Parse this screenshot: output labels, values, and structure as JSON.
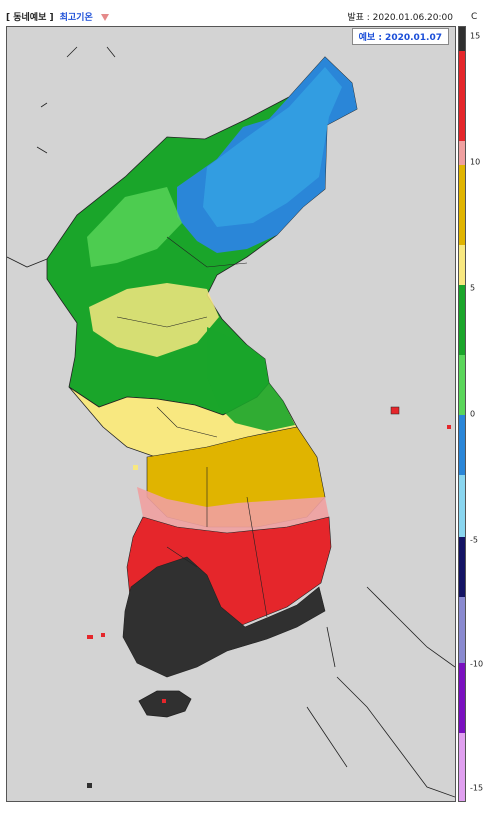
{
  "header": {
    "product": "[ 동네예보 ]",
    "variable": "최고기온",
    "issued": "발표 : 2020.01.06.20:00",
    "forecast": "예보 : 2020.01.07"
  },
  "legend": {
    "unit": "C",
    "ticks": [
      "15",
      "10",
      "5",
      "0",
      "-5",
      "-10",
      "-15"
    ],
    "tick_values": [
      15,
      10,
      5,
      0,
      -5,
      -10,
      -15
    ],
    "range": [
      -16,
      16
    ],
    "colors": {
      "above_15": "#303030",
      "10_to_15_red": "#e5262b",
      "10_to_15_pink": "#f0a0a0",
      "5_to_10": "#e0b400",
      "5_to_10_light": "#f8e880",
      "0_to_5": "#1aa52a",
      "0_to_5_light": "#5ad65a",
      "minus5_to_0": "#2a86d8",
      "minus5_to_0_light": "#8ad6f0",
      "minus10_to_minus5": "#141464",
      "minus10_to_minus5_light": "#8a8ad0",
      "minus15_to_minus10": "#7a10c0",
      "minus15_to_minus10_light": "#e0a0f0"
    }
  },
  "map": {
    "background": "#d3d3d3"
  }
}
